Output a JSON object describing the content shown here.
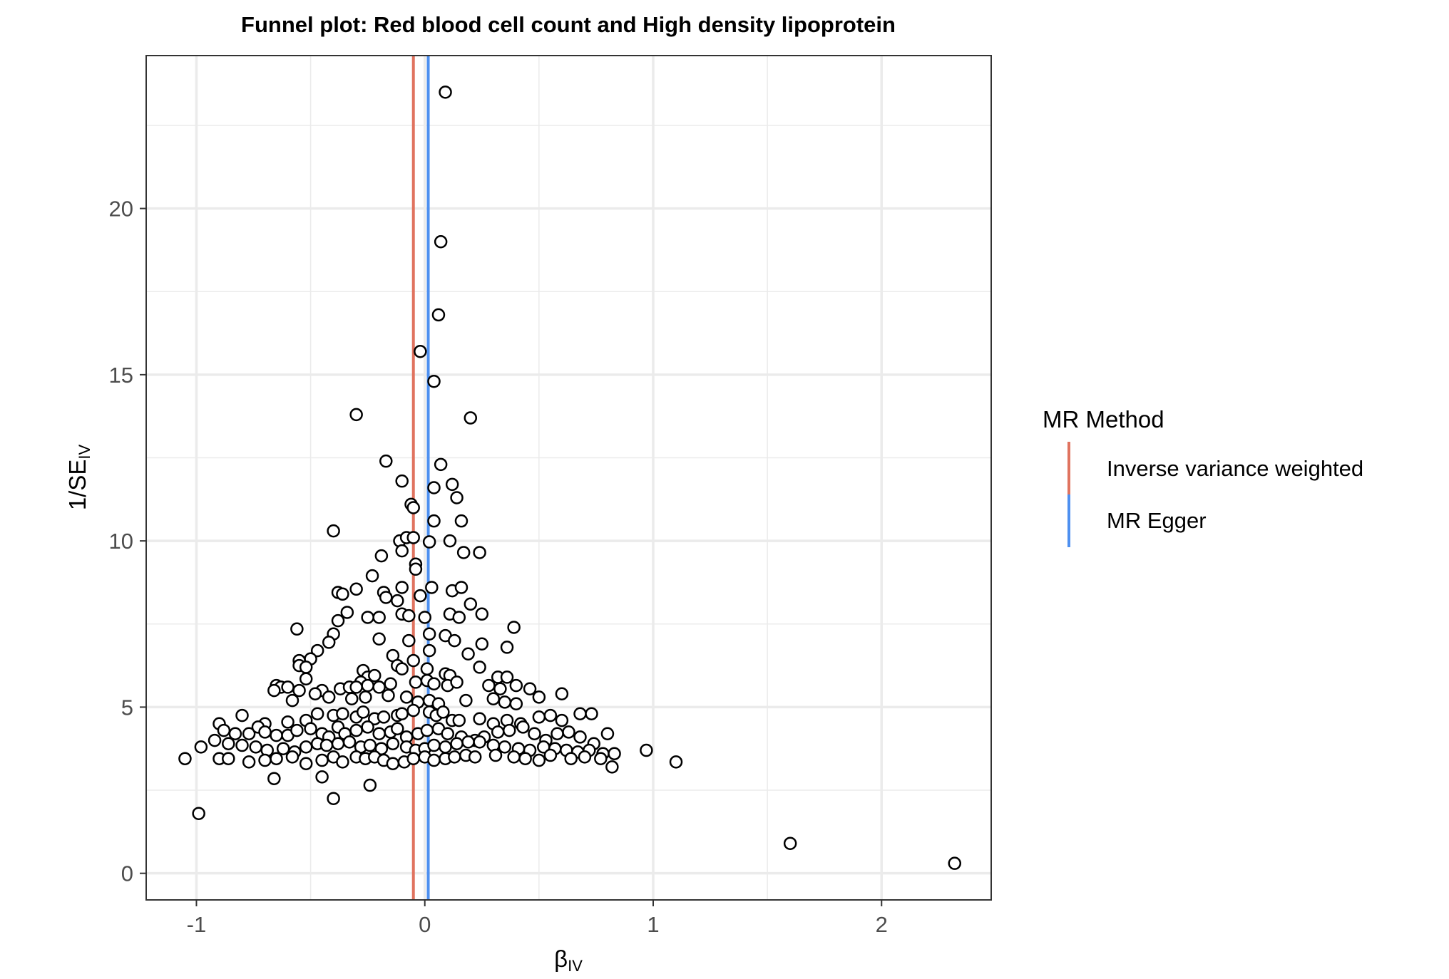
{
  "chart_data": {
    "type": "scatter",
    "title": "Funnel plot: Red blood cell count and High density lipoprotein",
    "xlabel": {
      "main": "β",
      "sub": "IV"
    },
    "ylabel": {
      "main": "1/SE",
      "sub": "IV"
    },
    "xlim": [
      -1.22,
      2.48
    ],
    "ylim": [
      -0.8,
      24.6
    ],
    "x_ticks": [
      -1,
      0,
      1,
      2
    ],
    "x_tick_labels": [
      "-1",
      "0",
      "1",
      "2"
    ],
    "y_ticks": [
      0,
      5,
      10,
      15,
      20
    ],
    "y_tick_labels": [
      "0",
      "5",
      "10",
      "15",
      "20"
    ],
    "x_minor_ticks": [
      -0.5,
      0.5,
      1.5
    ],
    "y_minor_ticks": [
      2.5,
      7.5,
      12.5,
      17.5,
      22.5
    ],
    "grid": true,
    "legend": {
      "title": "MR Method",
      "position": "right",
      "entries": [
        {
          "label": "Inverse variance weighted",
          "color": "#E0735F"
        },
        {
          "label": "MR Egger",
          "color": "#4E90F0"
        }
      ]
    },
    "lines": [
      {
        "name": "Inverse variance weighted",
        "x": -0.05,
        "color": "#E0735F"
      },
      {
        "name": "MR Egger",
        "x": 0.015,
        "color": "#4E90F0"
      }
    ],
    "points": [
      [
        0.09,
        23.5
      ],
      [
        0.07,
        19.0
      ],
      [
        0.06,
        16.8
      ],
      [
        -0.02,
        15.7
      ],
      [
        0.04,
        14.8
      ],
      [
        0.2,
        13.7
      ],
      [
        -0.3,
        13.8
      ],
      [
        -0.17,
        12.4
      ],
      [
        0.07,
        12.3
      ],
      [
        -0.1,
        11.8
      ],
      [
        0.04,
        11.6
      ],
      [
        0.12,
        11.7
      ],
      [
        0.14,
        11.3
      ],
      [
        -0.06,
        11.1
      ],
      [
        -0.05,
        11.0
      ],
      [
        0.04,
        10.6
      ],
      [
        0.16,
        10.6
      ],
      [
        -0.4,
        10.3
      ],
      [
        -0.11,
        10.0
      ],
      [
        -0.08,
        10.1
      ],
      [
        -0.05,
        10.1
      ],
      [
        0.02,
        9.97
      ],
      [
        0.11,
        10.0
      ],
      [
        0.17,
        9.65
      ],
      [
        0.24,
        9.65
      ],
      [
        -0.1,
        9.7
      ],
      [
        -0.19,
        9.55
      ],
      [
        -0.04,
        9.3
      ],
      [
        -0.04,
        9.15
      ],
      [
        -0.23,
        8.95
      ],
      [
        0.03,
        8.6
      ],
      [
        0.12,
        8.5
      ],
      [
        0.16,
        8.6
      ],
      [
        -0.1,
        8.6
      ],
      [
        -0.38,
        8.45
      ],
      [
        -0.3,
        8.55
      ],
      [
        -0.36,
        8.4
      ],
      [
        -0.18,
        8.45
      ],
      [
        -0.17,
        8.3
      ],
      [
        -0.02,
        8.35
      ],
      [
        -0.12,
        8.2
      ],
      [
        0.2,
        8.1
      ],
      [
        -0.25,
        7.7
      ],
      [
        -0.2,
        7.7
      ],
      [
        -0.1,
        7.8
      ],
      [
        -0.07,
        7.75
      ],
      [
        -0.34,
        7.85
      ],
      [
        0.0,
        7.7
      ],
      [
        0.11,
        7.8
      ],
      [
        0.15,
        7.7
      ],
      [
        0.25,
        7.8
      ],
      [
        -0.38,
        7.6
      ],
      [
        0.39,
        7.4
      ],
      [
        -0.56,
        7.35
      ],
      [
        -0.4,
        7.2
      ],
      [
        0.02,
        7.2
      ],
      [
        0.09,
        7.15
      ],
      [
        0.13,
        7.0
      ],
      [
        -0.2,
        7.05
      ],
      [
        -0.07,
        7.0
      ],
      [
        -0.42,
        6.95
      ],
      [
        0.02,
        6.7
      ],
      [
        0.25,
        6.9
      ],
      [
        -0.47,
        6.7
      ],
      [
        0.36,
        6.8
      ],
      [
        0.19,
        6.6
      ],
      [
        -0.14,
        6.55
      ],
      [
        -0.05,
        6.4
      ],
      [
        -0.5,
        6.45
      ],
      [
        -0.55,
        6.4
      ],
      [
        -0.55,
        6.25
      ],
      [
        -0.52,
        6.2
      ],
      [
        -0.27,
        6.1
      ],
      [
        0.01,
        6.15
      ],
      [
        0.09,
        6.0
      ],
      [
        0.11,
        5.95
      ],
      [
        0.24,
        6.2
      ],
      [
        -0.12,
        6.25
      ],
      [
        -0.1,
        6.15
      ],
      [
        0.32,
        5.9
      ],
      [
        0.36,
        5.9
      ],
      [
        -0.52,
        5.85
      ],
      [
        -0.25,
        5.9
      ],
      [
        -0.22,
        5.95
      ],
      [
        -0.28,
        5.75
      ],
      [
        -0.65,
        5.65
      ],
      [
        -0.63,
        5.6
      ],
      [
        -0.6,
        5.6
      ],
      [
        -0.66,
        5.5
      ],
      [
        -0.55,
        5.5
      ],
      [
        -0.45,
        5.5
      ],
      [
        -0.37,
        5.55
      ],
      [
        -0.33,
        5.6
      ],
      [
        -0.3,
        5.6
      ],
      [
        -0.25,
        5.65
      ],
      [
        -0.2,
        5.6
      ],
      [
        -0.15,
        5.7
      ],
      [
        -0.04,
        5.75
      ],
      [
        0.01,
        5.8
      ],
      [
        0.04,
        5.7
      ],
      [
        0.1,
        5.65
      ],
      [
        0.14,
        5.75
      ],
      [
        0.28,
        5.65
      ],
      [
        0.33,
        5.55
      ],
      [
        0.4,
        5.65
      ],
      [
        0.46,
        5.55
      ],
      [
        0.6,
        5.4
      ],
      [
        -0.58,
        5.2
      ],
      [
        -0.48,
        5.4
      ],
      [
        -0.42,
        5.3
      ],
      [
        -0.32,
        5.25
      ],
      [
        -0.26,
        5.3
      ],
      [
        -0.16,
        5.35
      ],
      [
        -0.08,
        5.3
      ],
      [
        -0.03,
        5.15
      ],
      [
        0.02,
        5.2
      ],
      [
        0.06,
        5.1
      ],
      [
        0.18,
        5.2
      ],
      [
        0.3,
        5.25
      ],
      [
        0.35,
        5.15
      ],
      [
        0.4,
        5.1
      ],
      [
        0.5,
        5.3
      ],
      [
        -0.8,
        4.75
      ],
      [
        -0.7,
        4.5
      ],
      [
        -0.6,
        4.55
      ],
      [
        -0.52,
        4.6
      ],
      [
        -0.47,
        4.8
      ],
      [
        -0.4,
        4.75
      ],
      [
        -0.36,
        4.8
      ],
      [
        -0.3,
        4.7
      ],
      [
        -0.27,
        4.85
      ],
      [
        -0.22,
        4.65
      ],
      [
        -0.18,
        4.7
      ],
      [
        -0.12,
        4.75
      ],
      [
        -0.1,
        4.8
      ],
      [
        -0.05,
        4.9
      ],
      [
        0.02,
        4.85
      ],
      [
        0.05,
        4.75
      ],
      [
        0.08,
        4.85
      ],
      [
        0.12,
        4.6
      ],
      [
        0.15,
        4.6
      ],
      [
        0.24,
        4.65
      ],
      [
        0.3,
        4.5
      ],
      [
        0.36,
        4.6
      ],
      [
        0.42,
        4.5
      ],
      [
        0.5,
        4.7
      ],
      [
        0.55,
        4.75
      ],
      [
        0.6,
        4.6
      ],
      [
        0.68,
        4.8
      ],
      [
        0.73,
        4.8
      ],
      [
        -0.9,
        4.5
      ],
      [
        -0.88,
        4.3
      ],
      [
        -0.83,
        4.2
      ],
      [
        -0.77,
        4.2
      ],
      [
        -0.73,
        4.4
      ],
      [
        -0.7,
        4.25
      ],
      [
        -0.65,
        4.15
      ],
      [
        -0.6,
        4.15
      ],
      [
        -0.56,
        4.3
      ],
      [
        -0.5,
        4.35
      ],
      [
        -0.45,
        4.2
      ],
      [
        -0.42,
        4.1
      ],
      [
        -0.38,
        4.4
      ],
      [
        -0.35,
        4.2
      ],
      [
        -0.3,
        4.3
      ],
      [
        -0.25,
        4.4
      ],
      [
        -0.2,
        4.2
      ],
      [
        -0.15,
        4.25
      ],
      [
        -0.12,
        4.35
      ],
      [
        -0.08,
        4.1
      ],
      [
        -0.03,
        4.2
      ],
      [
        0.01,
        4.3
      ],
      [
        0.06,
        4.35
      ],
      [
        0.1,
        4.2
      ],
      [
        0.16,
        4.1
      ],
      [
        0.22,
        4.0
      ],
      [
        0.26,
        4.1
      ],
      [
        0.32,
        4.25
      ],
      [
        0.37,
        4.3
      ],
      [
        0.43,
        4.4
      ],
      [
        0.48,
        4.2
      ],
      [
        0.53,
        4.0
      ],
      [
        0.58,
        4.2
      ],
      [
        0.63,
        4.25
      ],
      [
        0.68,
        4.1
      ],
      [
        0.74,
        3.9
      ],
      [
        0.8,
        4.2
      ],
      [
        -0.92,
        4.0
      ],
      [
        -0.86,
        3.9
      ],
      [
        -0.8,
        3.85
      ],
      [
        -0.74,
        3.8
      ],
      [
        -0.69,
        3.7
      ],
      [
        -0.62,
        3.75
      ],
      [
        -0.57,
        3.65
      ],
      [
        -0.52,
        3.8
      ],
      [
        -0.47,
        3.9
      ],
      [
        -0.43,
        3.85
      ],
      [
        -0.38,
        3.9
      ],
      [
        -0.33,
        3.95
      ],
      [
        -0.28,
        3.8
      ],
      [
        -0.24,
        3.85
      ],
      [
        -0.19,
        3.75
      ],
      [
        -0.14,
        3.9
      ],
      [
        -0.08,
        3.8
      ],
      [
        -0.04,
        3.7
      ],
      [
        0.0,
        3.75
      ],
      [
        0.04,
        3.85
      ],
      [
        0.09,
        3.8
      ],
      [
        0.14,
        3.9
      ],
      [
        0.19,
        3.95
      ],
      [
        0.24,
        3.95
      ],
      [
        0.3,
        3.85
      ],
      [
        0.35,
        3.8
      ],
      [
        0.41,
        3.75
      ],
      [
        0.46,
        3.7
      ],
      [
        0.52,
        3.8
      ],
      [
        0.57,
        3.75
      ],
      [
        0.62,
        3.7
      ],
      [
        0.67,
        3.65
      ],
      [
        0.72,
        3.7
      ],
      [
        0.78,
        3.6
      ],
      [
        0.83,
        3.6
      ],
      [
        0.97,
        3.7
      ],
      [
        -0.98,
        3.8
      ],
      [
        -1.05,
        3.45
      ],
      [
        -0.9,
        3.45
      ],
      [
        -0.86,
        3.45
      ],
      [
        -0.77,
        3.35
      ],
      [
        -0.7,
        3.4
      ],
      [
        -0.65,
        3.45
      ],
      [
        -0.58,
        3.5
      ],
      [
        -0.52,
        3.3
      ],
      [
        -0.45,
        3.4
      ],
      [
        -0.4,
        3.5
      ],
      [
        -0.36,
        3.35
      ],
      [
        -0.3,
        3.5
      ],
      [
        -0.26,
        3.45
      ],
      [
        -0.22,
        3.5
      ],
      [
        -0.18,
        3.4
      ],
      [
        -0.14,
        3.3
      ],
      [
        -0.09,
        3.35
      ],
      [
        -0.05,
        3.45
      ],
      [
        0.0,
        3.5
      ],
      [
        0.04,
        3.4
      ],
      [
        0.09,
        3.45
      ],
      [
        0.13,
        3.5
      ],
      [
        0.18,
        3.55
      ],
      [
        0.22,
        3.5
      ],
      [
        0.31,
        3.55
      ],
      [
        0.39,
        3.5
      ],
      [
        0.44,
        3.45
      ],
      [
        0.5,
        3.4
      ],
      [
        0.55,
        3.55
      ],
      [
        0.64,
        3.45
      ],
      [
        0.7,
        3.5
      ],
      [
        0.77,
        3.45
      ],
      [
        0.82,
        3.2
      ],
      [
        1.1,
        3.35
      ],
      [
        -0.66,
        2.85
      ],
      [
        -0.45,
        2.9
      ],
      [
        -0.24,
        2.65
      ],
      [
        -0.4,
        2.25
      ],
      [
        -0.99,
        1.8
      ],
      [
        1.6,
        0.9
      ],
      [
        2.32,
        0.3
      ]
    ]
  }
}
